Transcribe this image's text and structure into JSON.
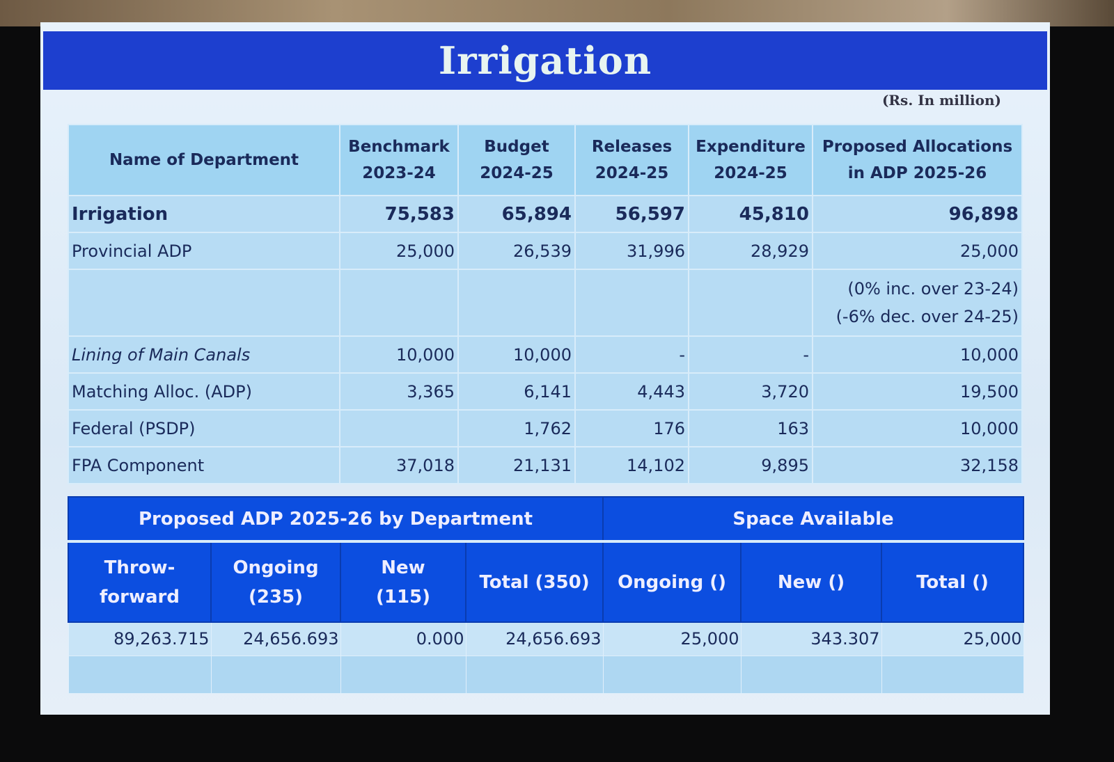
{
  "title": "Irrigation",
  "unit_note": "(Rs. In million)",
  "table1": {
    "headers": [
      "Name of Department",
      "Benchmark 2023-24",
      "Budget 2024-25",
      "Releases 2024-25",
      "Expenditure 2024-25",
      "Proposed Allocations in ADP 2025-26"
    ],
    "header_lines": [
      [
        "Name of Department"
      ],
      [
        "Benchmark",
        "2023-24"
      ],
      [
        "Budget",
        "2024-25"
      ],
      [
        "Releases",
        "2024-25"
      ],
      [
        "Expenditure",
        "2024-25"
      ],
      [
        "Proposed Allocations",
        "in ADP 2025-26"
      ]
    ],
    "rows": [
      [
        "Irrigation",
        "75,583",
        "65,894",
        "56,597",
        "45,810",
        "96,898"
      ],
      [
        "Provincial ADP",
        "25,000",
        "26,539",
        "31,996",
        "28,929",
        "25,000"
      ],
      [
        "",
        "",
        "",
        "",
        "",
        "(0% inc. over 23-24)"
      ],
      [
        "Lining of Main Canals",
        "10,000",
        "10,000",
        "-",
        "-",
        "10,000"
      ],
      [
        "Matching Alloc. (ADP)",
        "3,365",
        "6,141",
        "4,443",
        "3,720",
        "19,500"
      ],
      [
        "Federal (PSDP)",
        "",
        "1,762",
        "176",
        "163",
        "10,000"
      ],
      [
        "FPA Component",
        "37,018",
        "21,131",
        "14,102",
        "9,895",
        "32,158"
      ]
    ],
    "note2": "(-6% dec. over 24-25)"
  },
  "table2": {
    "group_headers": [
      "Proposed ADP 2025-26 by Department",
      "Space Available"
    ],
    "sub_headers": [
      [
        "Throw-",
        "forward"
      ],
      [
        "Ongoing",
        "(235)"
      ],
      [
        "New",
        "(115)"
      ],
      [
        "Total  (350)"
      ],
      [
        "Ongoing ()"
      ],
      [
        "New  ()"
      ],
      [
        "Total  ()"
      ]
    ],
    "values": [
      "89,263.715",
      "24,656.693",
      "0.000",
      "24,656.693",
      "25,000",
      "343.307",
      "25,000"
    ]
  }
}
